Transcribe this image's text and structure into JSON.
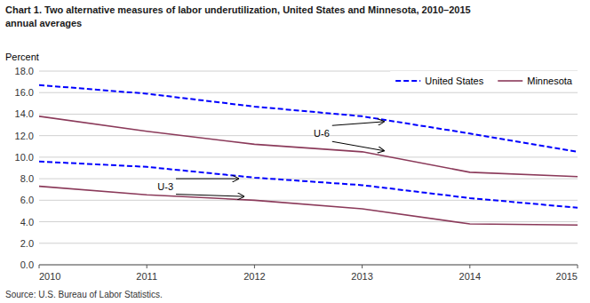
{
  "chart_data": {
    "type": "line",
    "title": "Chart 1. Two alternative measures of labor underutilization, United States and Minnesota, 2010–2015",
    "subtitle": "annual averages",
    "y_label": "Percent",
    "source": "Source: U.S. Bureau of Labor Statistics.",
    "x": [
      2010,
      2011,
      2012,
      2013,
      2014,
      2015
    ],
    "series": [
      {
        "name": "United States",
        "color": "#0000FF",
        "line_style": "dashed",
        "values": [
          16.7,
          15.9,
          14.7,
          13.8,
          12.2,
          10.5
        ]
      },
      {
        "color": "#0000FF",
        "line_style": "dashed",
        "values": [
          9.6,
          9.1,
          8.1,
          7.4,
          6.2,
          5.3
        ]
      },
      {
        "name": "Minnesota",
        "color": "#8B3A5A",
        "line_style": "solid",
        "values": [
          13.8,
          12.4,
          11.2,
          10.5,
          8.6,
          8.2
        ]
      },
      {
        "color": "#8B3A5A",
        "line_style": "solid",
        "values": [
          7.3,
          6.5,
          6.0,
          5.2,
          3.8,
          3.7
        ]
      }
    ],
    "xlim": [
      2010,
      2015
    ],
    "xticks": [
      2010,
      2011,
      2012,
      2013,
      2014,
      2015
    ],
    "ylim": [
      0,
      18.0
    ],
    "yticks": [
      {
        "value": 0.0,
        "label": "0.0"
      },
      {
        "value": 2.0,
        "label": "2.0"
      },
      {
        "value": 4.0,
        "label": "4.0"
      },
      {
        "value": 6.0,
        "label": "6.0"
      },
      {
        "value": 8.0,
        "label": "8.0"
      },
      {
        "value": 10.0,
        "label": "10.0"
      },
      {
        "value": 12.0,
        "label": "12.0"
      },
      {
        "value": 14.0,
        "label": "14.0"
      },
      {
        "value": 16.0,
        "label": "16.0"
      },
      {
        "value": 18.0,
        "label": "18.0"
      }
    ],
    "grid": true,
    "legend": "upper right",
    "annotations": [
      {
        "text": "U-6",
        "x": 2012.55,
        "y": 12.2,
        "points_to": [
          {
            "x": 2013.2,
            "y": 13.3
          },
          {
            "x": 2013.2,
            "y": 10.6
          }
        ]
      },
      {
        "text": "U-3",
        "x": 2011.1,
        "y": 7.3,
        "points_to": [
          {
            "x": 2011.85,
            "y": 8.0
          },
          {
            "x": 2011.9,
            "y": 6.35
          }
        ]
      }
    ]
  }
}
